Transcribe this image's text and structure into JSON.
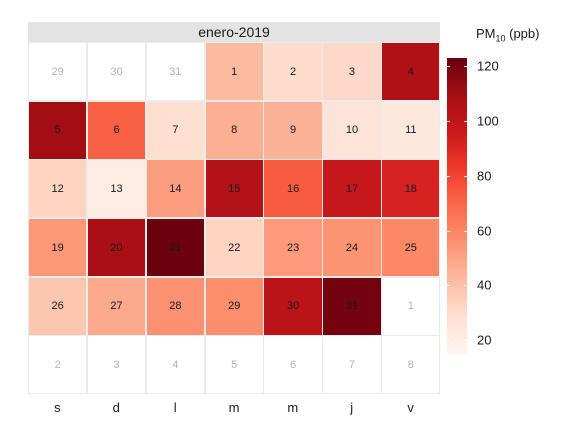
{
  "chart_data": {
    "type": "heatmap",
    "panel_title": "enero-2019",
    "x_labels": [
      "s",
      "d",
      "l",
      "m",
      "m",
      "j",
      "v"
    ],
    "legend": {
      "title": "PM",
      "title_sub": "10",
      "title_suffix": " (ppb)",
      "ticks": [
        20,
        40,
        60,
        80,
        100,
        120
      ],
      "range": [
        15,
        123
      ]
    },
    "cells": [
      {
        "day": "29",
        "in_month": false
      },
      {
        "day": "30",
        "in_month": false
      },
      {
        "day": "31",
        "in_month": false
      },
      {
        "day": "1",
        "in_month": true,
        "value": 42
      },
      {
        "day": "2",
        "in_month": true,
        "value": 30
      },
      {
        "day": "3",
        "in_month": true,
        "value": 31
      },
      {
        "day": "4",
        "in_month": true,
        "value": 106
      },
      {
        "day": "5",
        "in_month": true,
        "value": 110
      },
      {
        "day": "6",
        "in_month": true,
        "value": 72
      },
      {
        "day": "7",
        "in_month": true,
        "value": 29
      },
      {
        "day": "8",
        "in_month": true,
        "value": 46
      },
      {
        "day": "9",
        "in_month": true,
        "value": 45
      },
      {
        "day": "10",
        "in_month": true,
        "value": 26
      },
      {
        "day": "11",
        "in_month": true,
        "value": 24
      },
      {
        "day": "12",
        "in_month": true,
        "value": 33
      },
      {
        "day": "13",
        "in_month": true,
        "value": 20
      },
      {
        "day": "14",
        "in_month": true,
        "value": 52
      },
      {
        "day": "15",
        "in_month": true,
        "value": 105
      },
      {
        "day": "16",
        "in_month": true,
        "value": 73
      },
      {
        "day": "17",
        "in_month": true,
        "value": 98
      },
      {
        "day": "18",
        "in_month": true,
        "value": 92
      },
      {
        "day": "19",
        "in_month": true,
        "value": 54
      },
      {
        "day": "20",
        "in_month": true,
        "value": 108
      },
      {
        "day": "21",
        "in_month": true,
        "value": 122
      },
      {
        "day": "22",
        "in_month": true,
        "value": 33
      },
      {
        "day": "23",
        "in_month": true,
        "value": 53
      },
      {
        "day": "24",
        "in_month": true,
        "value": 55
      },
      {
        "day": "25",
        "in_month": true,
        "value": 59
      },
      {
        "day": "26",
        "in_month": true,
        "value": 38
      },
      {
        "day": "27",
        "in_month": true,
        "value": 48
      },
      {
        "day": "28",
        "in_month": true,
        "value": 56
      },
      {
        "day": "29",
        "in_month": true,
        "value": 57
      },
      {
        "day": "30",
        "in_month": true,
        "value": 102
      },
      {
        "day": "31",
        "in_month": true,
        "value": 120
      },
      {
        "day": "1",
        "in_month": false
      },
      {
        "day": "2",
        "in_month": false
      },
      {
        "day": "3",
        "in_month": false
      },
      {
        "day": "4",
        "in_month": false
      },
      {
        "day": "5",
        "in_month": false
      },
      {
        "day": "6",
        "in_month": false
      },
      {
        "day": "7",
        "in_month": false
      },
      {
        "day": "8",
        "in_month": false
      }
    ]
  }
}
